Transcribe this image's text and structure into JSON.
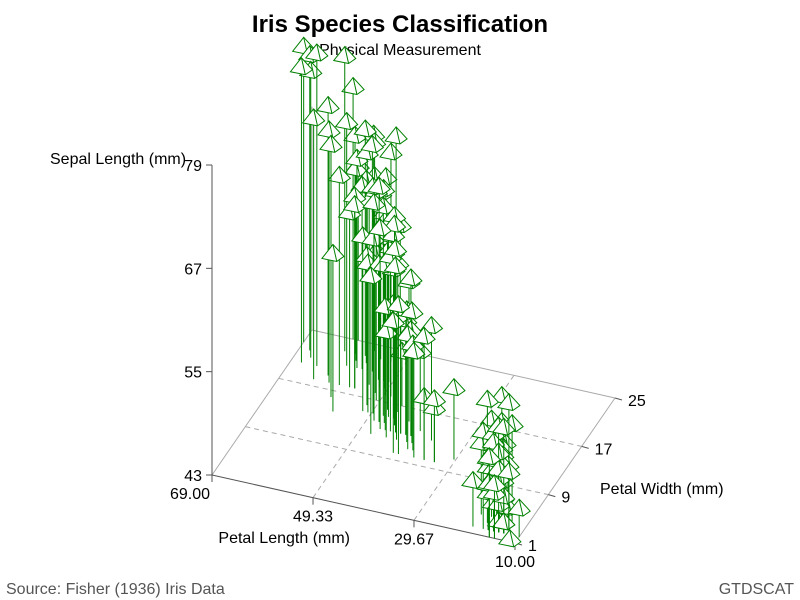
{
  "chart_data": {
    "type": "scatter",
    "subtype": "3d-needle",
    "title": "Iris Species Classification",
    "subtitle": "Physical Measurement",
    "x_axis": {
      "label": "Petal Length (mm)",
      "ticks": [
        "69.00",
        "49.33",
        "29.67",
        "10.00"
      ],
      "range": [
        10,
        69
      ],
      "reversed": true
    },
    "y_axis": {
      "label": "Petal Width (mm)",
      "ticks": [
        "1",
        "9",
        "17",
        "25"
      ],
      "range": [
        1,
        25
      ]
    },
    "z_axis": {
      "label": "Sepal Length (mm)",
      "ticks": [
        "43",
        "55",
        "67",
        "79"
      ],
      "range": [
        43,
        79
      ]
    },
    "grid": true,
    "marker": {
      "shape": "pyramid",
      "color": "#008000"
    },
    "footnote_left": "Source: Fisher (1936) Iris Data",
    "footnote_right": "GTDSCAT",
    "points": [
      [
        14,
        2,
        51
      ],
      [
        14,
        2,
        49
      ],
      [
        13,
        2,
        47
      ],
      [
        15,
        2,
        46
      ],
      [
        14,
        2,
        50
      ],
      [
        17,
        4,
        54
      ],
      [
        14,
        3,
        46
      ],
      [
        15,
        2,
        50
      ],
      [
        14,
        2,
        44
      ],
      [
        15,
        1,
        49
      ],
      [
        15,
        2,
        54
      ],
      [
        16,
        2,
        48
      ],
      [
        14,
        1,
        48
      ],
      [
        11,
        1,
        43
      ],
      [
        12,
        2,
        58
      ],
      [
        15,
        4,
        57
      ],
      [
        13,
        4,
        54
      ],
      [
        14,
        3,
        51
      ],
      [
        17,
        3,
        57
      ],
      [
        15,
        3,
        51
      ],
      [
        17,
        2,
        54
      ],
      [
        15,
        4,
        51
      ],
      [
        10,
        2,
        46
      ],
      [
        17,
        5,
        51
      ],
      [
        19,
        2,
        48
      ],
      [
        16,
        2,
        50
      ],
      [
        16,
        4,
        50
      ],
      [
        15,
        2,
        52
      ],
      [
        14,
        2,
        52
      ],
      [
        16,
        2,
        47
      ],
      [
        16,
        2,
        48
      ],
      [
        15,
        4,
        54
      ],
      [
        15,
        1,
        52
      ],
      [
        14,
        2,
        55
      ],
      [
        15,
        2,
        49
      ],
      [
        12,
        2,
        50
      ],
      [
        13,
        2,
        55
      ],
      [
        14,
        1,
        49
      ],
      [
        13,
        2,
        44
      ],
      [
        15,
        2,
        51
      ],
      [
        13,
        3,
        50
      ],
      [
        13,
        3,
        45
      ],
      [
        13,
        2,
        44
      ],
      [
        16,
        6,
        50
      ],
      [
        19,
        4,
        51
      ],
      [
        14,
        3,
        48
      ],
      [
        16,
        2,
        51
      ],
      [
        14,
        2,
        46
      ],
      [
        15,
        2,
        53
      ],
      [
        14,
        2,
        50
      ],
      [
        47,
        14,
        70
      ],
      [
        45,
        15,
        64
      ],
      [
        49,
        15,
        69
      ],
      [
        40,
        13,
        55
      ],
      [
        46,
        15,
        65
      ],
      [
        45,
        13,
        57
      ],
      [
        47,
        16,
        63
      ],
      [
        33,
        10,
        49
      ],
      [
        46,
        13,
        66
      ],
      [
        39,
        14,
        52
      ],
      [
        35,
        10,
        50
      ],
      [
        42,
        15,
        59
      ],
      [
        40,
        10,
        60
      ],
      [
        47,
        14,
        61
      ],
      [
        36,
        13,
        56
      ],
      [
        44,
        14,
        67
      ],
      [
        45,
        15,
        56
      ],
      [
        41,
        10,
        58
      ],
      [
        45,
        15,
        62
      ],
      [
        39,
        11,
        56
      ],
      [
        48,
        18,
        59
      ],
      [
        40,
        13,
        61
      ],
      [
        49,
        15,
        63
      ],
      [
        47,
        12,
        61
      ],
      [
        43,
        13,
        64
      ],
      [
        44,
        14,
        66
      ],
      [
        48,
        14,
        68
      ],
      [
        50,
        17,
        67
      ],
      [
        45,
        15,
        60
      ],
      [
        35,
        10,
        57
      ],
      [
        38,
        11,
        55
      ],
      [
        37,
        10,
        55
      ],
      [
        39,
        12,
        58
      ],
      [
        51,
        16,
        60
      ],
      [
        45,
        15,
        54
      ],
      [
        45,
        16,
        60
      ],
      [
        47,
        15,
        67
      ],
      [
        44,
        13,
        63
      ],
      [
        41,
        13,
        56
      ],
      [
        40,
        13,
        55
      ],
      [
        44,
        12,
        55
      ],
      [
        46,
        14,
        61
      ],
      [
        40,
        12,
        58
      ],
      [
        33,
        10,
        50
      ],
      [
        42,
        13,
        56
      ],
      [
        42,
        12,
        57
      ],
      [
        42,
        13,
        57
      ],
      [
        43,
        13,
        62
      ],
      [
        30,
        11,
        51
      ],
      [
        41,
        13,
        57
      ],
      [
        60,
        25,
        63
      ],
      [
        51,
        19,
        58
      ],
      [
        59,
        21,
        71
      ],
      [
        56,
        18,
        63
      ],
      [
        58,
        22,
        65
      ],
      [
        66,
        21,
        76
      ],
      [
        45,
        17,
        49
      ],
      [
        63,
        18,
        73
      ],
      [
        58,
        18,
        67
      ],
      [
        61,
        25,
        72
      ],
      [
        51,
        20,
        65
      ],
      [
        53,
        19,
        64
      ],
      [
        55,
        21,
        68
      ],
      [
        50,
        20,
        57
      ],
      [
        51,
        24,
        58
      ],
      [
        53,
        23,
        64
      ],
      [
        55,
        18,
        65
      ],
      [
        67,
        22,
        77
      ],
      [
        69,
        23,
        77
      ],
      [
        50,
        15,
        60
      ],
      [
        57,
        23,
        69
      ],
      [
        49,
        20,
        56
      ],
      [
        67,
        20,
        77
      ],
      [
        49,
        18,
        63
      ],
      [
        57,
        21,
        67
      ],
      [
        60,
        18,
        72
      ],
      [
        48,
        18,
        62
      ],
      [
        49,
        18,
        61
      ],
      [
        56,
        21,
        64
      ],
      [
        58,
        16,
        72
      ],
      [
        61,
        19,
        74
      ],
      [
        64,
        20,
        79
      ],
      [
        56,
        22,
        64
      ],
      [
        51,
        15,
        63
      ],
      [
        56,
        14,
        61
      ],
      [
        61,
        23,
        77
      ],
      [
        56,
        24,
        63
      ],
      [
        55,
        18,
        64
      ],
      [
        48,
        18,
        60
      ],
      [
        54,
        21,
        69
      ],
      [
        56,
        24,
        67
      ],
      [
        51,
        23,
        69
      ],
      [
        51,
        19,
        58
      ],
      [
        59,
        23,
        68
      ],
      [
        57,
        25,
        67
      ],
      [
        52,
        23,
        67
      ],
      [
        50,
        19,
        63
      ],
      [
        52,
        20,
        65
      ],
      [
        54,
        23,
        62
      ],
      [
        51,
        18,
        59
      ]
    ]
  }
}
